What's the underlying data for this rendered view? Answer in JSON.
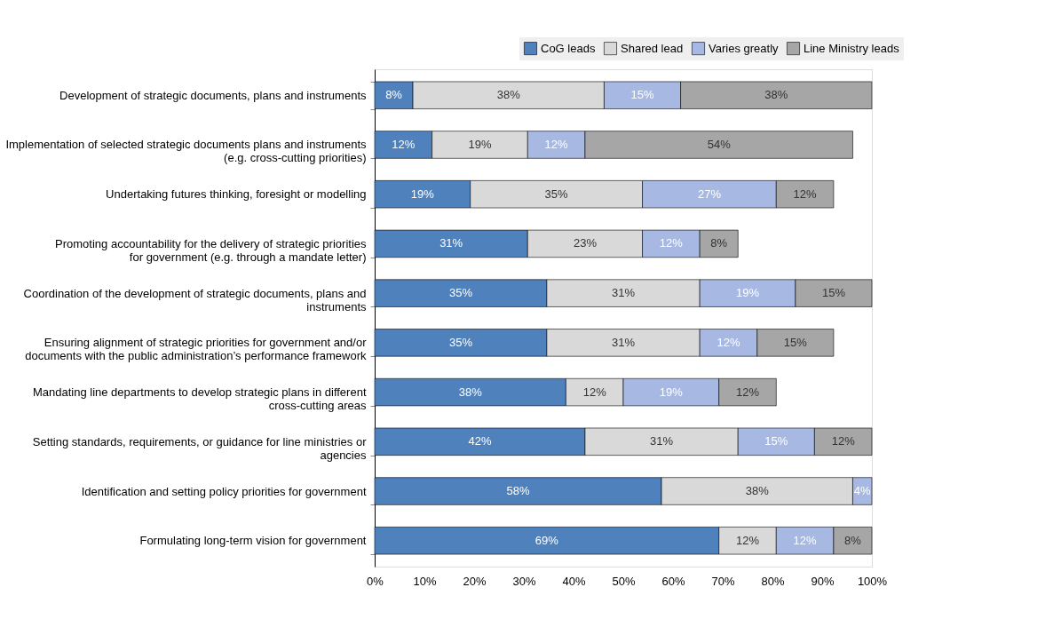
{
  "chart_data": {
    "type": "bar",
    "orientation": "horizontal",
    "stacked": true,
    "legend": "top right",
    "grid": false,
    "categories": [
      "Development of strategic documents, plans and instruments",
      "Implementation of selected strategic documents plans and instruments (e.g. cross-cutting priorities)",
      "Undertaking futures thinking, foresight or modelling",
      "Promoting accountability for the delivery of strategic priorities for government (e.g. through a mandate letter)",
      "Coordination of the development of strategic documents, plans and instruments",
      "Ensuring alignment of strategic priorities for government and/or documents with the public administration’s performance framework",
      "Mandating line departments to develop strategic plans in different cross-cutting areas",
      "Setting standards, requirements, or guidance for line ministries or agencies",
      "Identification and setting policy priorities for government",
      "Formulating long-term vision for government"
    ],
    "xlim": [
      0,
      100
    ],
    "xticks": [
      {
        "value": 0,
        "label": "0%"
      },
      {
        "value": 10,
        "label": "10%"
      },
      {
        "value": 20,
        "label": "20%"
      },
      {
        "value": 30,
        "label": "30%"
      },
      {
        "value": 40,
        "label": "40%"
      },
      {
        "value": 50,
        "label": "50%"
      },
      {
        "value": 60,
        "label": "60%"
      },
      {
        "value": 70,
        "label": "70%"
      },
      {
        "value": 80,
        "label": "80%"
      },
      {
        "value": 90,
        "label": "90%"
      },
      {
        "value": 100,
        "label": "100%"
      }
    ],
    "series": [
      {
        "name": "CoG leads",
        "color": "#4f81bd",
        "values": [
          7.69,
          11.54,
          19.23,
          30.77,
          34.62,
          34.62,
          38.46,
          42.31,
          57.69,
          69.23
        ],
        "value_labels": [
          "8%",
          "12%",
          "19%",
          "31%",
          "35%",
          "35%",
          "38%",
          "42%",
          "58%",
          "69%"
        ]
      },
      {
        "name": "Shared lead",
        "color": "#d9d9d9",
        "values": [
          38.46,
          19.23,
          34.62,
          23.08,
          30.77,
          30.77,
          11.54,
          30.77,
          38.46,
          11.54
        ],
        "value_labels": [
          "38%",
          "19%",
          "35%",
          "23%",
          "31%",
          "31%",
          "12%",
          "31%",
          "38%",
          "12%"
        ]
      },
      {
        "name": "Varies greatly",
        "color": "#a7b9e3",
        "values": [
          15.38,
          11.54,
          26.92,
          11.54,
          19.23,
          11.54,
          19.23,
          15.38,
          3.85,
          11.54
        ],
        "value_labels": [
          "15%",
          "12%",
          "27%",
          "12%",
          "19%",
          "12%",
          "19%",
          "15%",
          "4%",
          "12%"
        ]
      },
      {
        "name": "Line Ministry leads",
        "color": "#a6a6a6",
        "values": [
          38.46,
          53.85,
          11.54,
          7.69,
          15.38,
          15.38,
          11.54,
          11.54,
          null,
          7.69
        ],
        "value_labels": [
          "38%",
          "54%",
          "12%",
          "8%",
          "15%",
          "15%",
          "12%",
          "12%",
          null,
          "8%"
        ]
      }
    ]
  }
}
